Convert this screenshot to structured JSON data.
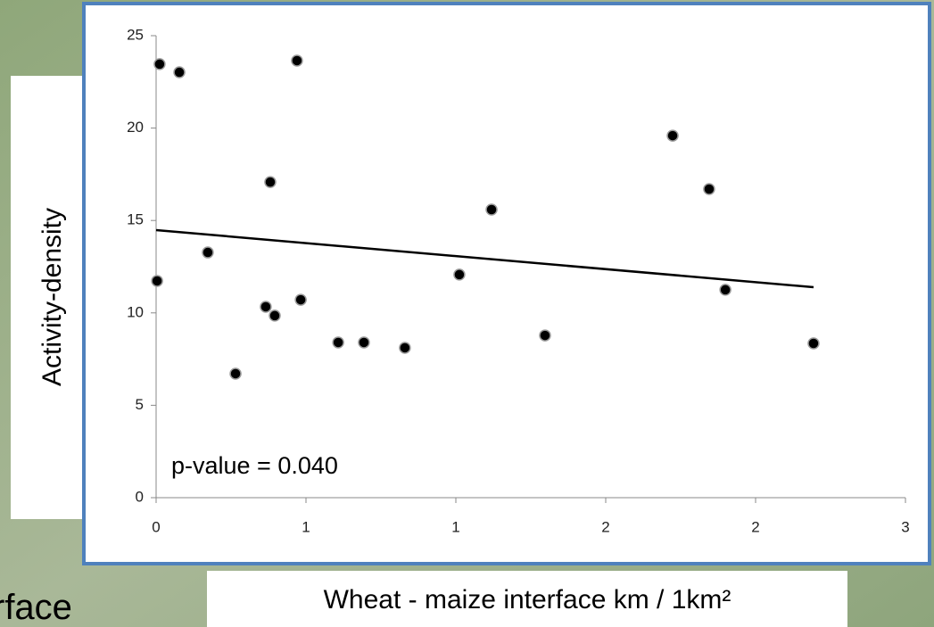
{
  "chart_data": {
    "type": "scatter",
    "xlabel": "Wheat - maize interface km / 1km²",
    "ylabel": "Activity-density",
    "annotation": "p-value = 0.040",
    "background_text": "rface",
    "x": [
      0.004,
      0.014,
      0.093,
      0.207,
      0.318,
      0.439,
      0.457,
      0.475,
      0.564,
      0.579,
      0.729,
      0.832,
      0.996,
      1.214,
      1.343,
      1.557,
      2.068,
      2.214,
      2.279,
      2.632
    ],
    "series": [
      {
        "color": "#000000",
        "values": [
          11.73,
          23.46,
          23.02,
          13.27,
          6.71,
          10.33,
          17.08,
          9.85,
          23.65,
          10.71,
          8.4,
          8.4,
          8.11,
          12.07,
          15.59,
          8.78,
          19.59,
          16.7,
          11.25,
          8.35
        ]
      }
    ],
    "trendline": {
      "x": [
        0,
        2.632
      ],
      "y": [
        14.48,
        11.39
      ],
      "color": "#000000"
    },
    "xlim": [
      0,
      3
    ],
    "xticks": [
      0,
      {
        "value": 0.6,
        "label": "1"
      },
      {
        "value": 1.2,
        "label": "1"
      },
      {
        "value": 1.8,
        "label": "2"
      },
      {
        "value": 2.4,
        "label": "2"
      },
      3
    ],
    "ylim": [
      0,
      25
    ],
    "yticks": [
      0,
      5,
      10,
      15,
      20,
      25
    ],
    "grid": false
  }
}
